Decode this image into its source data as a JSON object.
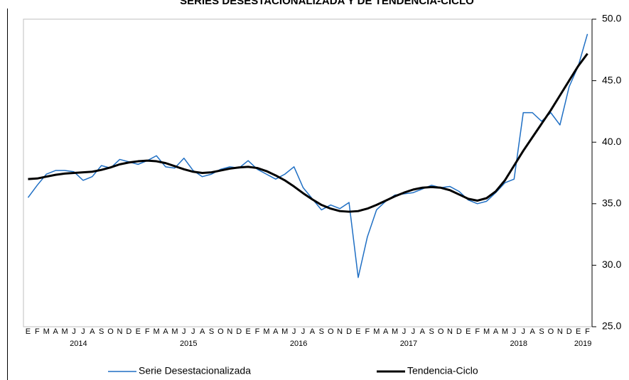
{
  "chart_data": {
    "type": "line",
    "title": "SERIES DESESTACIONALIZADA Y DE TENDENCIA-CICLO",
    "categories": [
      "E",
      "F",
      "M",
      "A",
      "M",
      "J",
      "J",
      "A",
      "S",
      "O",
      "N",
      "D",
      "E",
      "F",
      "M",
      "A",
      "M",
      "J",
      "J",
      "A",
      "S",
      "O",
      "N",
      "D",
      "E",
      "F",
      "M",
      "A",
      "M",
      "J",
      "J",
      "A",
      "S",
      "O",
      "N",
      "D",
      "E",
      "F",
      "M",
      "A",
      "M",
      "J",
      "J",
      "A",
      "S",
      "O",
      "N",
      "D",
      "E",
      "F",
      "M",
      "A",
      "M",
      "J",
      "J",
      "A",
      "S",
      "O",
      "N",
      "D",
      "E",
      "F"
    ],
    "year_labels": [
      "2014",
      "2015",
      "2016",
      "2017",
      "2018",
      "2019"
    ],
    "series": [
      {
        "name": "Serie Desestacionalizada",
        "color": "#1f6fc4",
        "width": 1.5,
        "values": [
          35.5,
          36.5,
          37.4,
          37.7,
          37.7,
          37.6,
          36.9,
          37.2,
          38.1,
          37.9,
          38.6,
          38.4,
          38.2,
          38.5,
          38.9,
          38.0,
          37.9,
          38.7,
          37.7,
          37.2,
          37.4,
          37.8,
          38.0,
          37.9,
          38.5,
          37.8,
          37.4,
          37.0,
          37.4,
          38.0,
          36.3,
          35.4,
          34.5,
          34.9,
          34.6,
          35.1,
          29.0,
          32.3,
          34.5,
          35.2,
          35.7,
          35.8,
          35.9,
          36.2,
          36.5,
          36.3,
          36.4,
          36.0,
          35.3,
          35.0,
          35.2,
          35.9,
          36.7,
          37.0,
          42.4,
          42.4,
          41.7,
          42.4,
          41.4,
          44.5,
          46.2,
          48.8
        ]
      },
      {
        "name": "Tendencia-Ciclo",
        "color": "#000000",
        "width": 3,
        "values": [
          37.0,
          37.05,
          37.2,
          37.35,
          37.45,
          37.5,
          37.55,
          37.6,
          37.75,
          37.95,
          38.2,
          38.35,
          38.45,
          38.5,
          38.45,
          38.3,
          38.05,
          37.8,
          37.6,
          37.5,
          37.55,
          37.7,
          37.85,
          37.95,
          38.0,
          37.9,
          37.65,
          37.3,
          36.9,
          36.4,
          35.85,
          35.35,
          34.9,
          34.6,
          34.4,
          34.35,
          34.4,
          34.6,
          34.9,
          35.25,
          35.6,
          35.9,
          36.15,
          36.3,
          36.35,
          36.3,
          36.1,
          35.75,
          35.4,
          35.25,
          35.45,
          36.0,
          36.9,
          38.1,
          39.3,
          40.4,
          41.5,
          42.6,
          43.8,
          45.0,
          46.2,
          47.2
        ]
      }
    ],
    "ylim": [
      25,
      50
    ],
    "yticks": [
      {
        "value": 25,
        "label": "25.0"
      },
      {
        "value": 30,
        "label": "30.0"
      },
      {
        "value": 35,
        "label": "35.0"
      },
      {
        "value": 40,
        "label": "40.0"
      },
      {
        "value": 45,
        "label": "45.0"
      },
      {
        "value": 50,
        "label": "50.0"
      }
    ],
    "y_axis_side": "right",
    "grid": false
  }
}
